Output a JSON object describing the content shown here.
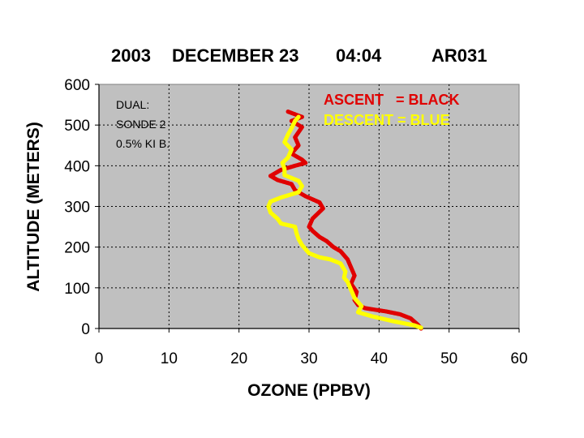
{
  "chart_data": {
    "type": "scatter",
    "title": {
      "year": "2003",
      "date": "DECEMBER 23",
      "time": "04:04",
      "id": "AR031"
    },
    "xlabel": "OZONE (PPBV)",
    "ylabel": "ALTITUDE (METERS)",
    "xlim": [
      0,
      60
    ],
    "ylim": [
      0,
      600
    ],
    "x_ticks": [
      "0",
      "10",
      "20",
      "30",
      "40",
      "50",
      "60"
    ],
    "y_ticks": [
      "0",
      "100",
      "200",
      "300",
      "400",
      "500",
      "600"
    ],
    "grid": true,
    "plot_background": "#c0c0c0",
    "annotation_lines": [
      "DUAL:",
      "SONDE 2",
      "0.5% KI B."
    ],
    "legend_lines": [
      "ASCENT   = BLACK",
      "DESCENT = BLUE"
    ],
    "series": [
      {
        "color": "#e00000",
        "points": [
          [
            46,
            0
          ],
          [
            45.5,
            10
          ],
          [
            44.5,
            25
          ],
          [
            43,
            35
          ],
          [
            41,
            42
          ],
          [
            38,
            50
          ],
          [
            37,
            58
          ],
          [
            36.5,
            70
          ],
          [
            36.8,
            90
          ],
          [
            36,
            110
          ],
          [
            36.5,
            130
          ],
          [
            36,
            150
          ],
          [
            35.5,
            170
          ],
          [
            35,
            180
          ],
          [
            34.5,
            190
          ],
          [
            33.5,
            200
          ],
          [
            32.5,
            215
          ],
          [
            31.5,
            225
          ],
          [
            30.5,
            240
          ],
          [
            30,
            250
          ],
          [
            30.5,
            270
          ],
          [
            32,
            295
          ],
          [
            31.5,
            310
          ],
          [
            29.5,
            325
          ],
          [
            28,
            340
          ],
          [
            27.5,
            355
          ],
          [
            25.5,
            365
          ],
          [
            24.5,
            375
          ],
          [
            26,
            390
          ],
          [
            28,
            400
          ],
          [
            29.5,
            407
          ],
          [
            29,
            415
          ],
          [
            27.5,
            430
          ],
          [
            28.5,
            450
          ],
          [
            28,
            470
          ],
          [
            29,
            495
          ],
          [
            27.5,
            510
          ],
          [
            29,
            520
          ],
          [
            27,
            533
          ]
        ]
      },
      {
        "color": "#ffff00",
        "points": [
          [
            46,
            2
          ],
          [
            45,
            8
          ],
          [
            42,
            18
          ],
          [
            39,
            30
          ],
          [
            37,
            40
          ],
          [
            37.5,
            55
          ],
          [
            36.5,
            75
          ],
          [
            36,
            95
          ],
          [
            35.5,
            115
          ],
          [
            35,
            125
          ],
          [
            35.2,
            140
          ],
          [
            34.5,
            160
          ],
          [
            33,
            170
          ],
          [
            31.5,
            175
          ],
          [
            30,
            185
          ],
          [
            29,
            205
          ],
          [
            28.5,
            220
          ],
          [
            28.2,
            235
          ],
          [
            28,
            250
          ],
          [
            26,
            258
          ],
          [
            25.5,
            270
          ],
          [
            24.5,
            285
          ],
          [
            24.2,
            300
          ],
          [
            24.5,
            312
          ],
          [
            26,
            322
          ],
          [
            28.5,
            335
          ],
          [
            29,
            350
          ],
          [
            28.5,
            363
          ],
          [
            26.5,
            377
          ],
          [
            26.5,
            392
          ],
          [
            26.2,
            407
          ],
          [
            27,
            420
          ],
          [
            27.5,
            440
          ],
          [
            26.5,
            458
          ],
          [
            27,
            477
          ],
          [
            27.5,
            492
          ],
          [
            28,
            510
          ],
          [
            28.5,
            520
          ]
        ]
      }
    ]
  }
}
